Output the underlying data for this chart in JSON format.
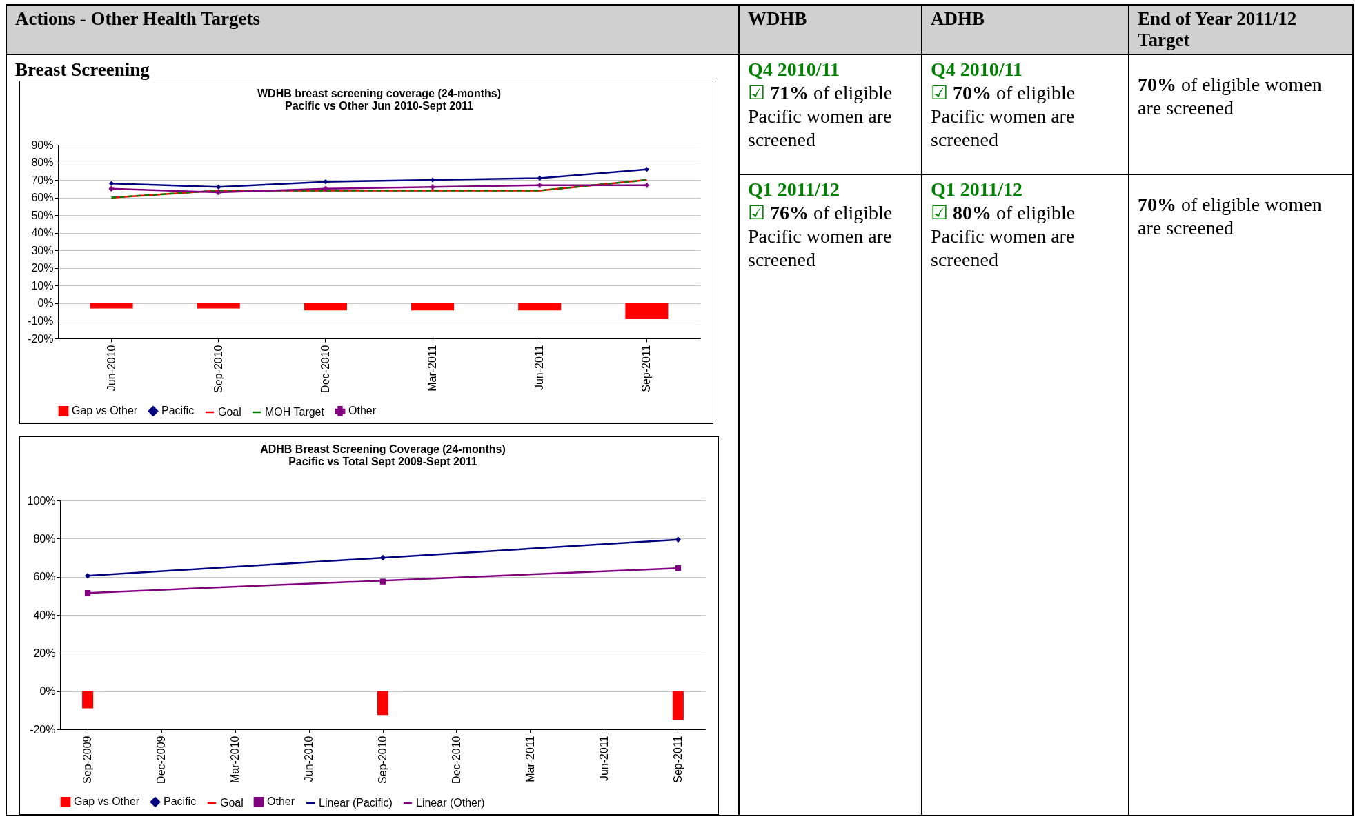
{
  "chart_data": [
    {
      "type": "bar",
      "title": "WDHB breast screening coverage (24-months)\nPacific vs Other Jun 2010-Sept 2011",
      "categories": [
        "Jun-2010",
        "Sep-2010",
        "Dec-2010",
        "Mar-2011",
        "Jun-2011",
        "Sep-2011"
      ],
      "series": [
        {
          "name": "Gap vs Other",
          "type": "bar",
          "color": "#ff0000",
          "values": [
            -3,
            -3,
            -4,
            -4,
            -4,
            -9
          ]
        },
        {
          "name": "Pacific",
          "type": "line",
          "color": "#000080",
          "marker": "diamond",
          "values": [
            68,
            66,
            69,
            70,
            71,
            76
          ]
        },
        {
          "name": "Goal",
          "type": "line",
          "color": "#ff0000",
          "values": [
            60,
            64,
            64,
            64,
            64,
            70
          ]
        },
        {
          "name": "MOH Target",
          "type": "line",
          "color": "#008000",
          "line_style": "dashed",
          "values": [
            60,
            64,
            64,
            64,
            64,
            70
          ]
        },
        {
          "name": "Other",
          "type": "line",
          "color": "#800080",
          "marker": "cross",
          "values": [
            65,
            63,
            65,
            66,
            67,
            67
          ]
        }
      ],
      "ylim": [
        -20,
        90
      ],
      "yticks": [
        {
          "value": -20,
          "label": "-20%"
        },
        {
          "value": -10,
          "label": "-10%"
        },
        {
          "value": 0,
          "label": "0%"
        },
        {
          "value": 10,
          "label": "10%"
        },
        {
          "value": 20,
          "label": "20%"
        },
        {
          "value": 30,
          "label": "30%"
        },
        {
          "value": 40,
          "label": "40%"
        },
        {
          "value": 50,
          "label": "50%"
        },
        {
          "value": 60,
          "label": "60%"
        },
        {
          "value": 70,
          "label": "70%"
        },
        {
          "value": 80,
          "label": "80%"
        },
        {
          "value": 90,
          "label": "90%"
        }
      ],
      "grid": "y",
      "legend": "bottom"
    },
    {
      "type": "bar",
      "title": "ADHB Breast Screening Coverage (24-months)\nPacific vs Total Sept 2009-Sept 2011",
      "categories": [
        "Sep-2009",
        "Dec-2009",
        "Mar-2010",
        "Jun-2010",
        "Sep-2010",
        "Dec-2010",
        "Mar-2011",
        "Jun-2011",
        "Sep-2011"
      ],
      "series": [
        {
          "name": "Gap vs Other",
          "type": "bar",
          "color": "#ff0000",
          "values": [
            -9,
            null,
            null,
            null,
            -12.5,
            null,
            null,
            null,
            -15
          ]
        },
        {
          "name": "Pacific",
          "type": "scatter",
          "color": "#000080",
          "marker": "diamond",
          "x": [
            "Sep-2009",
            "Sep-2010",
            "Sep-2011"
          ],
          "values": [
            60.5,
            70,
            79.5
          ]
        },
        {
          "name": "Goal",
          "type": "line",
          "color": "#ff0000",
          "values": [
            null,
            null,
            null,
            null,
            null,
            null,
            null,
            null,
            null
          ]
        },
        {
          "name": "Other",
          "type": "scatter",
          "color": "#800080",
          "marker": "square",
          "x": [
            "Sep-2009",
            "Sep-2010",
            "Sep-2011"
          ],
          "values": [
            51.5,
            57.5,
            64.5
          ]
        },
        {
          "name": "Linear (Pacific)",
          "type": "line",
          "color": "#000080",
          "x": [
            "Sep-2009",
            "Sep-2011"
          ],
          "values": [
            60.5,
            79.5
          ]
        },
        {
          "name": "Linear (Other)",
          "type": "line",
          "color": "#800080",
          "x": [
            "Sep-2009",
            "Sep-2011"
          ],
          "values": [
            51.5,
            64.5
          ]
        }
      ],
      "ylim": [
        -20,
        100
      ],
      "yticks": [
        {
          "value": -20,
          "label": "-20%"
        },
        {
          "value": 0,
          "label": "0%"
        },
        {
          "value": 20,
          "label": "20%"
        },
        {
          "value": 40,
          "label": "40%"
        },
        {
          "value": 60,
          "label": "60%"
        },
        {
          "value": 80,
          "label": "80%"
        },
        {
          "value": 100,
          "label": "100%"
        }
      ],
      "grid": "y",
      "legend": "bottom"
    },
    {
      "type": "other",
      "title": "Actions - Other Health Targets",
      "subtitle": "Breast Screening",
      "categories": [
        "WDHB",
        "ADHB",
        "End of Year 2011/12 Target"
      ],
      "annotations": [
        "Q4 2010/11\n☑ 71% of eligible Pacific women are screened",
        "Q4 2010/11\n☑ 70% of eligible Pacific women are screened",
        "70% of eligible women are screened",
        "Q1 2011/12\n☑ 76% of eligible Pacific women are screened",
        "Q1 2011/12\n☑ 80% of eligible Pacific women are screened",
        "70% of eligible women are screened"
      ]
    }
  ]
}
